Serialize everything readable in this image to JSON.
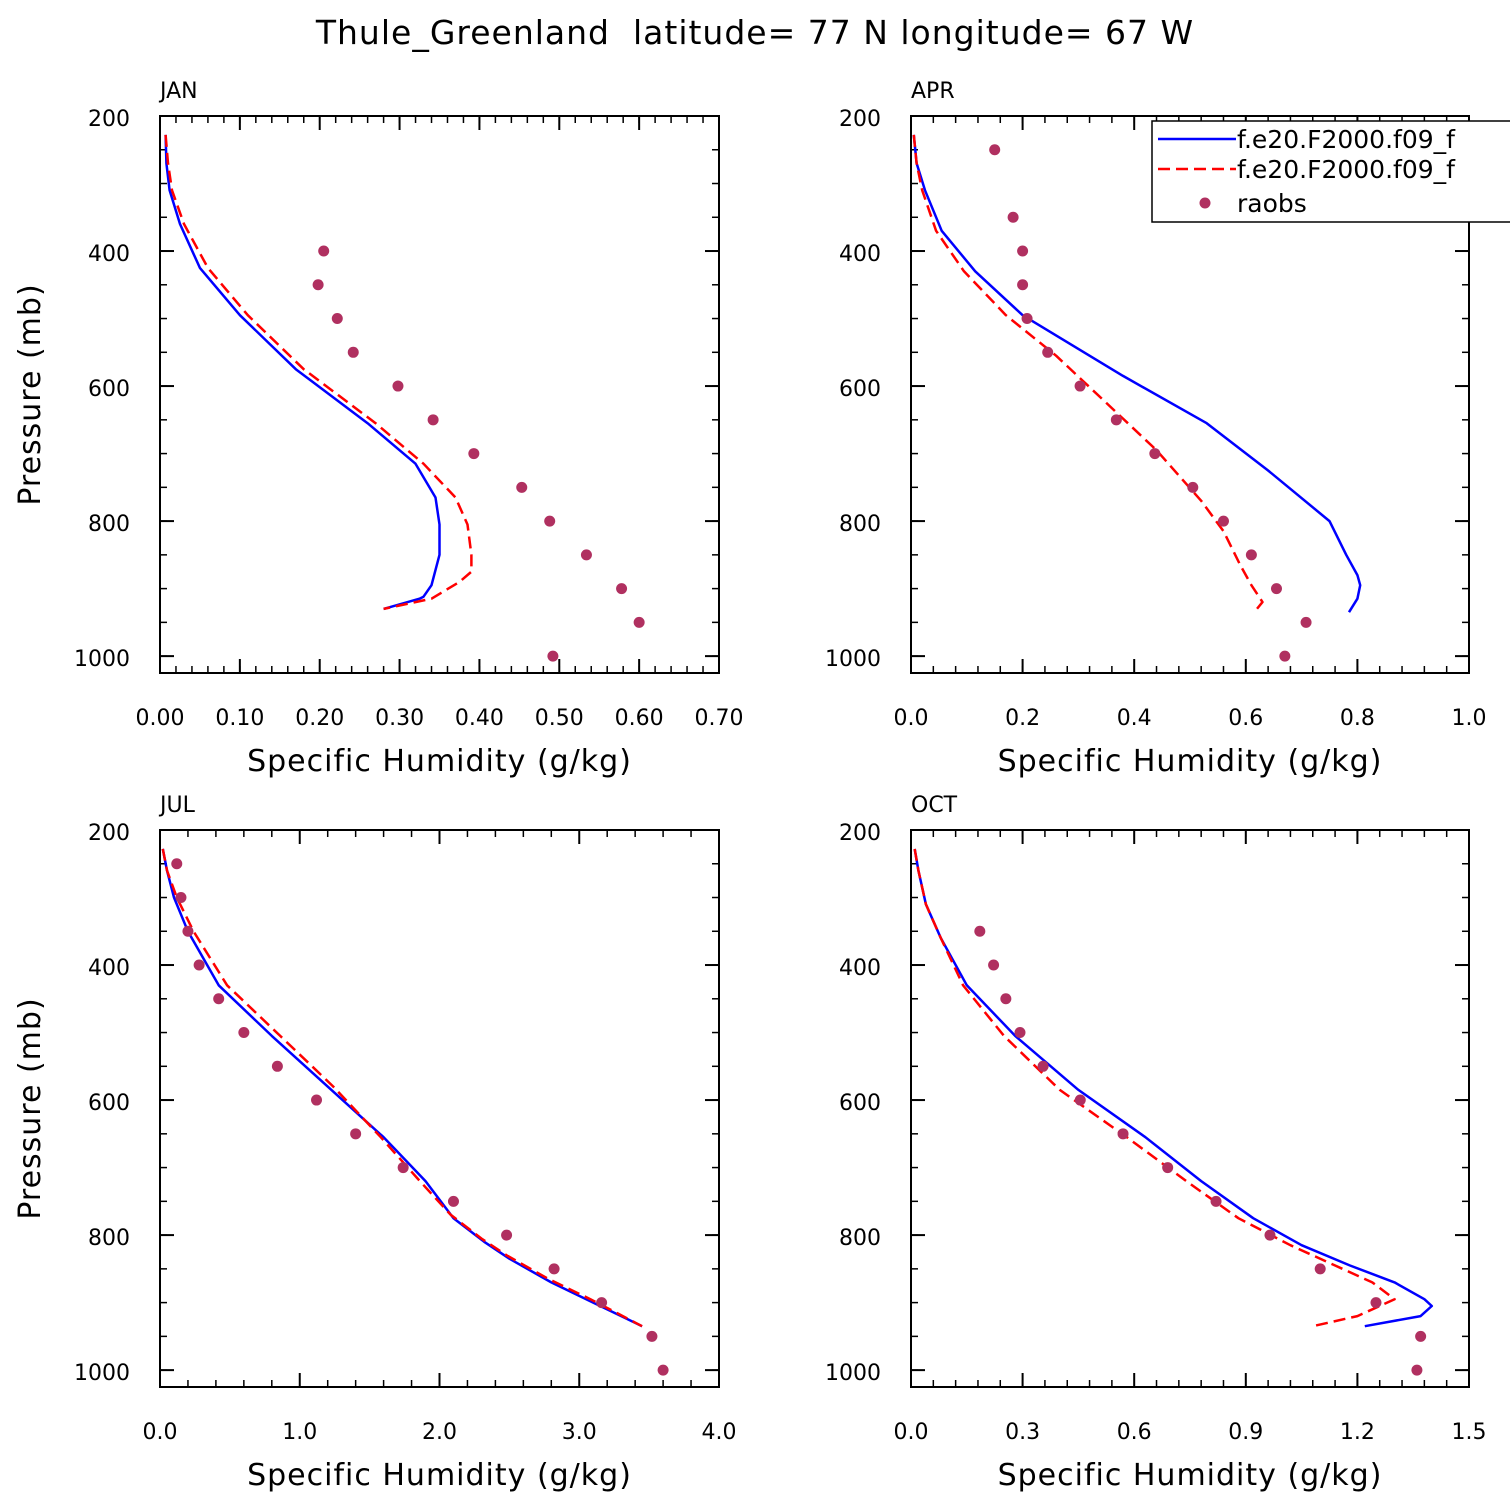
{
  "title": "Thule_Greenland  latitude= 77 N longitude= 67 W",
  "colors": {
    "model1": "#0000ff",
    "model2": "#ff0000",
    "raobs": "#b03060"
  },
  "legend": {
    "items": [
      {
        "label": "f.e20.F2000.f09_f",
        "style": "solid",
        "color": "#0000ff"
      },
      {
        "label": "f.e20.F2000.f09_f",
        "style": "dashed",
        "color": "#ff0000"
      },
      {
        "label": "raobs",
        "style": "dot",
        "color": "#b03060"
      }
    ]
  },
  "chart_data": [
    {
      "type": "line",
      "panel": "JAN",
      "xlabel": "Specific Humidity (g/kg)",
      "ylabel": "Pressure (mb)",
      "xlim": [
        0,
        0.7
      ],
      "ylim": [
        1025,
        200
      ],
      "xticks": [
        0,
        0.1,
        0.2,
        0.3,
        0.4,
        0.5,
        0.6,
        0.7
      ],
      "xtick_labels": [
        "0.00",
        "0.10",
        "0.20",
        "0.30",
        "0.40",
        "0.50",
        "0.60",
        "0.70"
      ],
      "xminor": 0.02,
      "yticks": [
        200,
        400,
        600,
        800,
        1000
      ],
      "ytick_labels": [
        "200",
        "400",
        "600",
        "800",
        "1000"
      ],
      "yminor": 50,
      "series": [
        {
          "name": "f.e20.F2000.f09_f",
          "style": "solid",
          "x": [
            0.007,
            0.008,
            0.012,
            0.025,
            0.05,
            0.1,
            0.17,
            0.26,
            0.32,
            0.345,
            0.35,
            0.35,
            0.34,
            0.33,
            0.325,
            0.28
          ],
          "y": [
            228,
            270,
            310,
            360,
            425,
            495,
            575,
            655,
            715,
            765,
            805,
            850,
            895,
            912,
            915,
            930
          ]
        },
        {
          "name": "f.e20.F2000.f09_f",
          "style": "dashed",
          "x": [
            0.007,
            0.01,
            0.015,
            0.03,
            0.06,
            0.11,
            0.18,
            0.27,
            0.33,
            0.37,
            0.385,
            0.39,
            0.39,
            0.375,
            0.34,
            0.28
          ],
          "y": [
            228,
            270,
            310,
            360,
            425,
            495,
            575,
            655,
            715,
            765,
            805,
            850,
            875,
            890,
            915,
            930
          ]
        },
        {
          "name": "raobs",
          "style": "dot",
          "x": [
            0.205,
            0.198,
            0.222,
            0.242,
            0.298,
            0.342,
            0.393,
            0.453,
            0.488,
            0.534,
            0.578,
            0.6,
            0.492
          ],
          "y": [
            400,
            450,
            500,
            550,
            600,
            650,
            700,
            750,
            800,
            850,
            900,
            950,
            1000
          ]
        }
      ]
    },
    {
      "type": "line",
      "panel": "APR",
      "xlabel": "Specific Humidity (g/kg)",
      "ylabel": "",
      "xlim": [
        0,
        1.0
      ],
      "ylim": [
        1025,
        200
      ],
      "xticks": [
        0,
        0.2,
        0.4,
        0.6,
        0.8,
        1.0
      ],
      "xtick_labels": [
        "0.0",
        "0.2",
        "0.4",
        "0.6",
        "0.8",
        "1.0"
      ],
      "xminor": 0.04,
      "yticks": [
        200,
        400,
        600,
        800,
        1000
      ],
      "ytick_labels": [
        "200",
        "400",
        "600",
        "800",
        "1000"
      ],
      "yminor": 50,
      "series": [
        {
          "name": "f.e20.F2000.f09_f",
          "style": "solid",
          "x": [
            0.005,
            0.01,
            0.025,
            0.055,
            0.115,
            0.2,
            0.38,
            0.53,
            0.64,
            0.75,
            0.78,
            0.8,
            0.805,
            0.8,
            0.785
          ],
          "y": [
            228,
            270,
            310,
            370,
            430,
            495,
            585,
            655,
            725,
            800,
            850,
            880,
            895,
            915,
            935
          ]
        },
        {
          "name": "f.e20.F2000.f09_f",
          "style": "dashed",
          "x": [
            0.005,
            0.01,
            0.02,
            0.045,
            0.095,
            0.17,
            0.26,
            0.35,
            0.44,
            0.52,
            0.56,
            0.59,
            0.61,
            0.63,
            0.615
          ],
          "y": [
            228,
            270,
            310,
            370,
            430,
            495,
            555,
            625,
            695,
            770,
            815,
            865,
            895,
            920,
            935
          ]
        },
        {
          "name": "raobs",
          "style": "dot",
          "x": [
            0.15,
            0.183,
            0.2,
            0.2,
            0.208,
            0.245,
            0.303,
            0.368,
            0.437,
            0.505,
            0.56,
            0.61,
            0.655,
            0.708,
            0.67
          ],
          "y": [
            250,
            350,
            400,
            450,
            500,
            550,
            600,
            650,
            700,
            750,
            800,
            850,
            900,
            950,
            1000
          ]
        }
      ]
    },
    {
      "type": "line",
      "panel": "JUL",
      "xlabel": "Specific Humidity (g/kg)",
      "ylabel": "Pressure (mb)",
      "xlim": [
        0,
        4.0
      ],
      "ylim": [
        1025,
        200
      ],
      "xticks": [
        0,
        1,
        2,
        3,
        4
      ],
      "xtick_labels": [
        "0.0",
        "1.0",
        "2.0",
        "3.0",
        "4.0"
      ],
      "xminor": 0.2,
      "yticks": [
        200,
        400,
        600,
        800,
        1000
      ],
      "ytick_labels": [
        "200",
        "400",
        "600",
        "800",
        "1000"
      ],
      "yminor": 50,
      "series": [
        {
          "name": "f.e20.F2000.f09_f",
          "style": "solid",
          "x": [
            0.02,
            0.05,
            0.1,
            0.2,
            0.42,
            0.8,
            1.2,
            1.6,
            1.9,
            2.1,
            2.32,
            2.5,
            2.8,
            3.1,
            3.45
          ],
          "y": [
            228,
            260,
            300,
            350,
            430,
            505,
            580,
            655,
            720,
            775,
            810,
            835,
            870,
            900,
            935
          ]
        },
        {
          "name": "f.e20.F2000.f09_f",
          "style": "dashed",
          "x": [
            0.02,
            0.05,
            0.12,
            0.24,
            0.48,
            0.86,
            1.24,
            1.58,
            1.86,
            2.08,
            2.3,
            2.48,
            2.78,
            3.08,
            3.45
          ],
          "y": [
            228,
            260,
            300,
            350,
            430,
            505,
            580,
            655,
            720,
            770,
            805,
            830,
            865,
            895,
            935
          ]
        },
        {
          "name": "raobs",
          "style": "dot",
          "x": [
            0.12,
            0.15,
            0.2,
            0.28,
            0.42,
            0.6,
            0.84,
            1.12,
            1.4,
            1.74,
            2.1,
            2.48,
            2.82,
            3.16,
            3.52,
            3.6
          ],
          "y": [
            250,
            300,
            350,
            400,
            450,
            500,
            550,
            600,
            650,
            700,
            750,
            800,
            850,
            900,
            950,
            1000
          ]
        }
      ]
    },
    {
      "type": "line",
      "panel": "OCT",
      "xlabel": "Specific Humidity (g/kg)",
      "ylabel": "",
      "xlim": [
        0,
        1.5
      ],
      "ylim": [
        1025,
        200
      ],
      "xticks": [
        0,
        0.3,
        0.6,
        0.9,
        1.2,
        1.5
      ],
      "xtick_labels": [
        "0.0",
        "0.3",
        "0.6",
        "0.9",
        "1.2",
        "1.5"
      ],
      "xminor": 0.06,
      "yticks": [
        200,
        400,
        600,
        800,
        1000
      ],
      "ytick_labels": [
        "200",
        "400",
        "600",
        "800",
        "1000"
      ],
      "yminor": 50,
      "series": [
        {
          "name": "f.e20.F2000.f09_f",
          "style": "solid",
          "x": [
            0.01,
            0.02,
            0.04,
            0.08,
            0.15,
            0.28,
            0.45,
            0.63,
            0.78,
            0.92,
            1.05,
            1.18,
            1.3,
            1.38,
            1.4,
            1.37,
            1.22
          ],
          "y": [
            228,
            260,
            310,
            360,
            430,
            505,
            585,
            655,
            720,
            775,
            815,
            845,
            870,
            895,
            905,
            920,
            935
          ]
        },
        {
          "name": "f.e20.F2000.f09_f",
          "style": "dashed",
          "x": [
            0.01,
            0.02,
            0.04,
            0.08,
            0.14,
            0.25,
            0.4,
            0.58,
            0.74,
            0.88,
            1.02,
            1.14,
            1.24,
            1.3,
            1.26,
            1.2,
            1.08
          ],
          "y": [
            228,
            260,
            310,
            360,
            430,
            505,
            585,
            655,
            720,
            775,
            815,
            845,
            870,
            895,
            905,
            920,
            935
          ]
        },
        {
          "name": "raobs",
          "style": "dot",
          "x": [
            0.185,
            0.222,
            0.255,
            0.293,
            0.355,
            0.455,
            0.57,
            0.69,
            0.82,
            0.965,
            1.1,
            1.25,
            1.37,
            1.36
          ],
          "y": [
            350,
            400,
            450,
            500,
            550,
            600,
            650,
            700,
            750,
            800,
            850,
            900,
            950,
            1000
          ]
        }
      ]
    }
  ]
}
